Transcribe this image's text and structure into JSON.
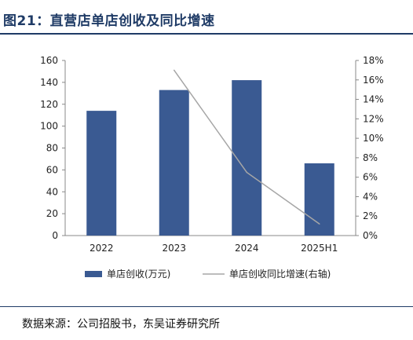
{
  "figure": {
    "title": "图21：直营店单店创收及同比增速",
    "source": "数据来源：公司招股书，东吴证券研究所"
  },
  "chart_data": {
    "type": "bar",
    "categories": [
      "2022",
      "2023",
      "2024",
      "2025H1"
    ],
    "series": [
      {
        "name": "单店创收(万元)",
        "type": "bar",
        "axis": "left",
        "color": "#3a5a92",
        "values": [
          114,
          133,
          142,
          66
        ]
      },
      {
        "name": "单店创收同比增速(右轴)",
        "type": "line",
        "axis": "right",
        "color": "#a6a6a6",
        "values": [
          null,
          17.0,
          6.5,
          1.2
        ]
      }
    ],
    "left_axis": {
      "min": 0,
      "max": 160,
      "step": 20,
      "ticks": [
        "0",
        "20",
        "40",
        "60",
        "80",
        "100",
        "120",
        "140",
        "160"
      ]
    },
    "right_axis": {
      "min": 0,
      "max": 18,
      "step": 2,
      "ticks": [
        "0%",
        "2%",
        "4%",
        "6%",
        "8%",
        "10%",
        "12%",
        "14%",
        "16%",
        "18%"
      ]
    },
    "grid": false,
    "legend": "bottom"
  }
}
